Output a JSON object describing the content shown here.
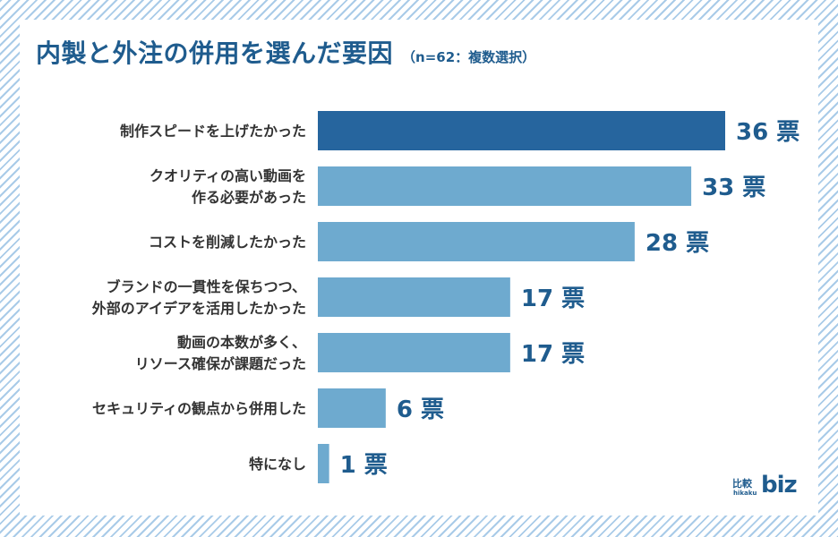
{
  "title": "内製と外注の併用を選んだ要因",
  "subtitle": "（n=62：複数選択）",
  "logo": {
    "kanji": "比較",
    "small": "hikaku",
    "biz": "biz"
  },
  "colors": {
    "highlight": "#26659e",
    "bar": "#6eaacf",
    "value_text": "#1f5c8e",
    "label_text": "#333333"
  },
  "chart_data": {
    "type": "bar",
    "orientation": "horizontal",
    "title": "内製と外注の併用を選んだ要因",
    "unit": "票",
    "categories": [
      [
        "制作スピードを上げたかった"
      ],
      [
        "クオリティの高い動画を",
        "作る必要があった"
      ],
      [
        "コストを削減したかった"
      ],
      [
        "ブランドの一貫性を保ちつつ、",
        "外部のアイデアを活用したかった"
      ],
      [
        "動画の本数が多く、",
        "リソース確保が課題だった"
      ],
      [
        "セキュリティの観点から併用した"
      ],
      [
        "特になし"
      ]
    ],
    "values": [
      36,
      33,
      28,
      17,
      17,
      6,
      1
    ],
    "value_labels": [
      "36 票",
      "33 票",
      "28 票",
      "17 票",
      "17 票",
      "6 票",
      "1 票"
    ],
    "highlight_index": 0,
    "xlim": [
      0,
      36
    ]
  }
}
